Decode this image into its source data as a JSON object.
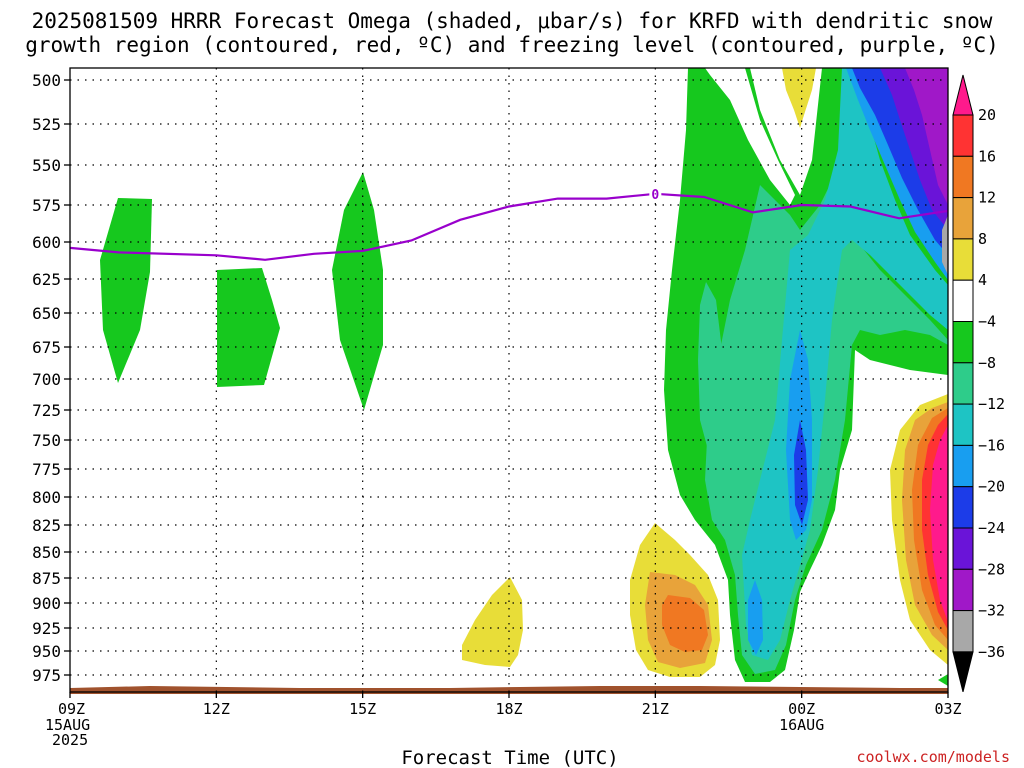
{
  "chart_data": {
    "type": "contour",
    "title_line1": "2025081509 HRRR Forecast Omega (shaded, μbar/s) for KRFD with dendritic snow",
    "title_line2": "growth region (contoured, red, ºC) and freezing level (contoured, purple, ºC)",
    "xlabel": "Forecast Time (UTC)",
    "x_ticks": [
      "09Z",
      "12Z",
      "15Z",
      "18Z",
      "21Z",
      "00Z",
      "03Z"
    ],
    "x_tick_dates": {
      "09Z": "15AUG",
      "00Z": "16AUG"
    },
    "x_tick_year": "2025",
    "y_ticks": [
      "500",
      "525",
      "550",
      "575",
      "600",
      "625",
      "650",
      "675",
      "700",
      "725",
      "750",
      "775",
      "800",
      "825",
      "850",
      "875",
      "900",
      "925",
      "950",
      "975"
    ],
    "y_unit": "hPa",
    "grid": true,
    "freezing_level": {
      "label": "0",
      "color": "#9900cc",
      "points": [
        {
          "time": "09Z",
          "pressure": 604
        },
        {
          "time": "10Z",
          "pressure": 607
        },
        {
          "time": "12Z",
          "pressure": 609
        },
        {
          "time": "13Z",
          "pressure": 612
        },
        {
          "time": "14Z",
          "pressure": 608
        },
        {
          "time": "15Z",
          "pressure": 606
        },
        {
          "time": "16Z",
          "pressure": 599
        },
        {
          "time": "17Z",
          "pressure": 585
        },
        {
          "time": "18Z",
          "pressure": 576
        },
        {
          "time": "19Z",
          "pressure": 571
        },
        {
          "time": "20Z",
          "pressure": 571
        },
        {
          "time": "21Z",
          "pressure": 568
        },
        {
          "time": "22Z",
          "pressure": 570
        },
        {
          "time": "23Z",
          "pressure": 580
        },
        {
          "time": "00Z",
          "pressure": 575
        },
        {
          "time": "01Z",
          "pressure": 576
        },
        {
          "time": "02Z",
          "pressure": 584
        },
        {
          "time": "03Z",
          "pressure": 579
        }
      ]
    },
    "colorbar": {
      "labels": [
        "20",
        "16",
        "12",
        "8",
        "4",
        "−4",
        "−8",
        "−12",
        "−16",
        "−20",
        "−24",
        "−28",
        "−32",
        "−36"
      ],
      "colors": [
        "#ff1a8c",
        "#ff3333",
        "#f07822",
        "#e8a33a",
        "#e8dd38",
        "#ffffff",
        "#16c81e",
        "#2ecc8a",
        "#1ec4c4",
        "#189ef0",
        "#1c3ce8",
        "#6a14d8",
        "#a018c8",
        "#a8a8a8"
      ]
    },
    "omega_regions": [
      {
        "name": "omega-green-a",
        "color": "#16c81e",
        "points": [
          [
            "10Z",
            575
          ],
          [
            "11Z",
            577
          ],
          [
            "11Z",
            630
          ],
          [
            "10Z",
            705
          ],
          [
            "09Z",
            650
          ]
        ]
      },
      {
        "name": "omega-green-b",
        "color": "#16c81e",
        "points": [
          [
            "12Z",
            620
          ],
          [
            "13Z",
            622
          ],
          [
            "14Z",
            660
          ],
          [
            "13Z",
            705
          ],
          [
            "12Z",
            705
          ]
        ]
      },
      {
        "name": "omega-green-c",
        "color": "#16c81e",
        "points": [
          [
            "15Z",
            555
          ],
          [
            "16Z",
            650
          ],
          [
            "15Z",
            725
          ],
          [
            "14Z",
            650
          ]
        ]
      },
      {
        "name": "omega-green-main",
        "color": "#16c81e",
        "points": [
          [
            "22Z",
            500
          ],
          [
            "23Z",
            500
          ],
          [
            "23Z",
            540
          ],
          [
            "00Z",
            570
          ],
          [
            "01Z",
            500
          ],
          [
            "03Z",
            500
          ],
          [
            "03Z",
            695
          ],
          [
            "02Z",
            670
          ],
          [
            "01Z",
            680
          ],
          [
            "00Z",
            840
          ],
          [
            "23Z",
            980
          ],
          [
            "22Z",
            870
          ],
          [
            "21Z",
            700
          ],
          [
            "21Z",
            600
          ]
        ]
      },
      {
        "name": "omega-teal",
        "color": "#2ecc8a",
        "points": [
          [
            "23Z",
            575
          ],
          [
            "00Z",
            590
          ],
          [
            "01Z",
            605
          ],
          [
            "02Z",
            640
          ],
          [
            "02Z",
            680
          ],
          [
            "01Z",
            680
          ],
          [
            "00Z",
            840
          ],
          [
            "23Z",
            975
          ],
          [
            "23Z",
            880
          ],
          [
            "22Z",
            760
          ],
          [
            "22Z",
            640
          ]
        ]
      },
      {
        "name": "omega-cyan",
        "color": "#1ec4c4",
        "points": [
          [
            "00Z",
            580
          ],
          [
            "01Z",
            520
          ],
          [
            "03Z",
            560
          ],
          [
            "03Z",
            600
          ],
          [
            "01Z",
            610
          ],
          [
            "00Z",
            830
          ],
          [
            "23Z",
            960
          ],
          [
            "23Z",
            810
          ],
          [
            "23Z",
            700
          ]
        ]
      },
      {
        "name": "omega-blue-col",
        "color": "#189ef0",
        "points": [
          [
            "00Z",
            665
          ],
          [
            "00Z",
            840
          ],
          [
            "23Z",
            960
          ],
          [
            "23Z",
            890
          ],
          [
            "00Z",
            760
          ]
        ]
      },
      {
        "name": "omega-dblue-core",
        "color": "#1c3ce8",
        "points": [
          [
            "00Z",
            745
          ],
          [
            "00Z",
            815
          ],
          [
            "00Z",
            790
          ]
        ]
      },
      {
        "name": "omega-blue-top",
        "color": "#189ef0",
        "points": [
          [
            "01Z",
            500
          ],
          [
            "02Z",
            500
          ],
          [
            "03Z",
            560
          ],
          [
            "03Z",
            620
          ],
          [
            "02Z",
            570
          ],
          [
            "01Z",
            540
          ]
        ]
      },
      {
        "name": "omega-dblue-top",
        "color": "#1c3ce8",
        "points": [
          [
            "01Z",
            500
          ],
          [
            "02Z",
            500
          ],
          [
            "03Z",
            540
          ],
          [
            "03Z",
            620
          ],
          [
            "02Z",
            580
          ],
          [
            "01Z",
            530
          ]
        ]
      },
      {
        "name": "omega-purple-top",
        "color": "#a018c8",
        "points": [
          [
            "02Z",
            500
          ],
          [
            "03Z",
            500
          ],
          [
            "03Z",
            590
          ],
          [
            "02Z",
            540
          ]
        ]
      },
      {
        "name": "omega-gray",
        "color": "#a8a8a8",
        "points": [
          [
            "03Z",
            590
          ],
          [
            "03Z",
            630
          ]
        ]
      },
      {
        "name": "omega-yellow-top",
        "color": "#e8dd38",
        "points": [
          [
            "23Z",
            500
          ],
          [
            "00Z",
            500
          ],
          [
            "00Z",
            515
          ]
        ]
      },
      {
        "name": "omega-yellow-18z",
        "color": "#e8dd38",
        "points": [
          [
            "18Z",
            880
          ],
          [
            "18Z",
            940
          ],
          [
            "18Z",
            975
          ],
          [
            "17Z",
            950
          ]
        ]
      },
      {
        "name": "omega-yellow-22z",
        "color": "#e8dd38",
        "points": [
          [
            "21Z",
            830
          ],
          [
            "22Z",
            860
          ],
          [
            "22Z",
            960
          ],
          [
            "21Z",
            975
          ],
          [
            "21Z",
            900
          ]
        ]
      },
      {
        "name": "omega-lorange-22z",
        "color": "#e8a33a",
        "points": [
          [
            "21Z",
            880
          ],
          [
            "22Z",
            900
          ],
          [
            "22Z",
            955
          ],
          [
            "21Z",
            960
          ]
        ]
      },
      {
        "name": "omega-orange-22z",
        "color": "#f07822",
        "points": [
          [
            "22Z",
            900
          ],
          [
            "22Z",
            925
          ],
          [
            "22Z",
            945
          ],
          [
            "21Z",
            940
          ]
        ]
      },
      {
        "name": "omega-yellow-right",
        "color": "#e8dd38",
        "points": [
          [
            "03Z",
            730
          ],
          [
            "03Z",
            960
          ],
          [
            "02Z",
            900
          ],
          [
            "02Z",
            790
          ]
        ]
      },
      {
        "name": "omega-orange-right",
        "color": "#f07822",
        "points": [
          [
            "03Z",
            750
          ],
          [
            "03Z",
            950
          ],
          [
            "02Z",
            860
          ]
        ]
      },
      {
        "name": "omega-red-right",
        "color": "#ff3333",
        "points": [
          [
            "03Z",
            755
          ],
          [
            "03Z",
            945
          ]
        ]
      },
      {
        "name": "omega-magenta-right",
        "color": "#ff1a8c",
        "points": [
          [
            "03Z",
            765
          ],
          [
            "03Z",
            935
          ]
        ]
      }
    ]
  },
  "watermark": "coolwx.com/models"
}
